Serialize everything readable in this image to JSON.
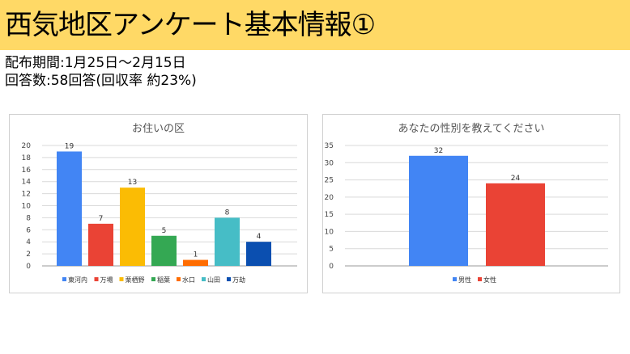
{
  "header": {
    "title": "西気地区アンケート基本情報①"
  },
  "info": {
    "period": "配布期間:1月25日～2月15日",
    "responses": "回答数:58回答(回収率 約23%)"
  },
  "colors": {
    "title_bar": "#ffd966",
    "series": [
      "#4285f4",
      "#ea4335",
      "#fbbc04",
      "#34a853",
      "#ff6d01",
      "#46bdc6",
      "#0b4fb0"
    ]
  },
  "chart_data": [
    {
      "type": "bar",
      "title": "お住いの区",
      "categories": [
        "東河内",
        "万場",
        "栗栖野",
        "稲葉",
        "水口",
        "山田",
        "万劫"
      ],
      "values": [
        19,
        7,
        13,
        5,
        1,
        8,
        4
      ],
      "colors": [
        "#4285f4",
        "#ea4335",
        "#fbbc04",
        "#34a853",
        "#ff6d01",
        "#46bdc6",
        "#0b4fb0"
      ],
      "ylim": [
        0,
        20
      ],
      "yticks": [
        0,
        2,
        4,
        6,
        8,
        10,
        12,
        14,
        16,
        18,
        20
      ],
      "grid": true,
      "legend": "bottom"
    },
    {
      "type": "bar",
      "title": "あなたの性別を教えてください",
      "categories": [
        "男性",
        "女性"
      ],
      "values": [
        32,
        24
      ],
      "colors": [
        "#4285f4",
        "#ea4335"
      ],
      "ylim": [
        0,
        35
      ],
      "yticks": [
        0,
        5,
        10,
        15,
        20,
        25,
        30,
        35
      ],
      "grid": true,
      "legend": "bottom"
    }
  ]
}
